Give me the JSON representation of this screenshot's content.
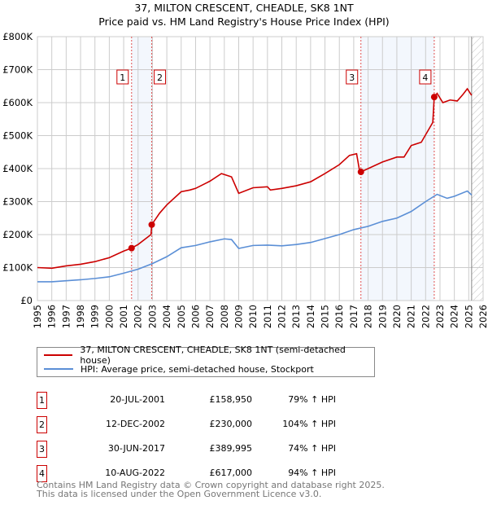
{
  "chart_data": {
    "type": "line",
    "title": "37, MILTON CRESCENT, CHEADLE, SK8 1NT",
    "subtitle": "Price paid vs. HM Land Registry's House Price Index (HPI)",
    "ylim": [
      0,
      800000
    ],
    "xlim": [
      1995,
      2026
    ],
    "yticks": [
      "£0",
      "£100K",
      "£200K",
      "£300K",
      "£400K",
      "£500K",
      "£600K",
      "£700K",
      "£800K"
    ],
    "xticks": [
      "1995",
      "1996",
      "1997",
      "1998",
      "1999",
      "2000",
      "2001",
      "2002",
      "2003",
      "2004",
      "2005",
      "2006",
      "2007",
      "2008",
      "2009",
      "2010",
      "2011",
      "2012",
      "2013",
      "2014",
      "2015",
      "2016",
      "2017",
      "2018",
      "2019",
      "2020",
      "2021",
      "2022",
      "2023",
      "2024",
      "2025",
      "2026"
    ],
    "grid": true,
    "series": [
      {
        "name": "37, MILTON CRESCENT, CHEADLE, SK8 1NT (semi-detached house)",
        "color": "#cc0000",
        "x": [
          1995,
          1996,
          1997,
          1998,
          1999,
          2000,
          2001,
          2001.55,
          2002,
          2002.9,
          2002.95,
          2003.5,
          2004,
          2005,
          2005.6,
          2006,
          2007,
          2007.8,
          2008.5,
          2009,
          2010,
          2011,
          2011.2,
          2012,
          2013,
          2014,
          2015,
          2016,
          2016.7,
          2017.2,
          2017.4,
          2017.5,
          2018,
          2019,
          2020,
          2020.5,
          2021,
          2021.7,
          2022.5,
          2022.6,
          2022.8,
          2023.2,
          2023.7,
          2024.2,
          2024.6,
          2024.9,
          2025.2
        ],
        "y": [
          100000,
          98000,
          105000,
          110000,
          118000,
          130000,
          150000,
          158950,
          170000,
          200000,
          230000,
          265000,
          290000,
          330000,
          335000,
          340000,
          362000,
          385000,
          375000,
          325000,
          342000,
          345000,
          335000,
          340000,
          348000,
          360000,
          385000,
          412000,
          440000,
          445000,
          395000,
          389995,
          400000,
          420000,
          435000,
          435000,
          470000,
          480000,
          540000,
          617000,
          628000,
          600000,
          608000,
          605000,
          625000,
          642000,
          622000
        ]
      },
      {
        "name": "HPI: Average price, semi-detached house, Stockport",
        "color": "#5b8fd6",
        "x": [
          1995,
          1996,
          1997,
          1998,
          1999,
          2000,
          2001,
          2002,
          2003,
          2004,
          2005,
          2006,
          2007,
          2008,
          2008.5,
          2009,
          2010,
          2011,
          2012,
          2013,
          2014,
          2015,
          2016,
          2017,
          2018,
          2019,
          2020,
          2021,
          2022,
          2022.8,
          2023.5,
          2024,
          2024.9,
          2025.2
        ],
        "y": [
          57000,
          57000,
          60000,
          63000,
          67000,
          72000,
          83000,
          95000,
          112000,
          133000,
          160000,
          167000,
          178000,
          187000,
          185000,
          158000,
          167000,
          168000,
          166000,
          170000,
          176000,
          188000,
          200000,
          215000,
          225000,
          240000,
          250000,
          270000,
          300000,
          322000,
          310000,
          316000,
          332000,
          320000
        ]
      }
    ],
    "sales": [
      {
        "id": "1",
        "x": 2001.55,
        "date": "20-JUL-2001",
        "price": "£158,950",
        "value": 158950,
        "hpi": "79% ↑ HPI"
      },
      {
        "id": "2",
        "x": 2002.95,
        "date": "12-DEC-2002",
        "price": "£230,000",
        "value": 230000,
        "hpi": "104% ↑ HPI"
      },
      {
        "id": "3",
        "x": 2017.5,
        "date": "30-JUN-2017",
        "price": "£389,995",
        "value": 389995,
        "hpi": "74% ↑ HPI"
      },
      {
        "id": "4",
        "x": 2022.6,
        "date": "10-AUG-2022",
        "price": "£617,000",
        "value": 617000,
        "hpi": "94% ↑ HPI"
      }
    ],
    "shaded": [
      [
        2001.55,
        2002.95
      ],
      [
        2017.5,
        2022.6
      ]
    ],
    "forecast_from": 2025.2
  },
  "footer": {
    "line1": "Contains HM Land Registry data © Crown copyright and database right 2025.",
    "line2": "This data is licensed under the Open Government Licence v3.0."
  }
}
